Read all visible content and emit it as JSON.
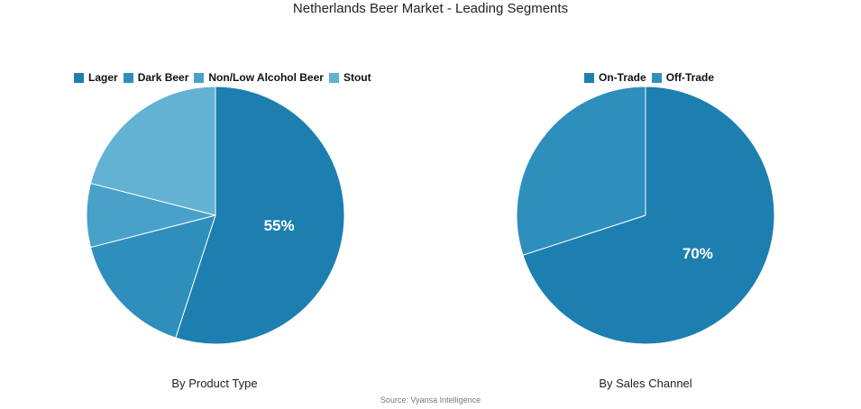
{
  "title": "Netherlands Beer Market - Leading Segments",
  "source": "Source: Vyansa Intelligence",
  "colors": {
    "lager": "#1c7fb0",
    "dark_beer": "#2e8fbd",
    "non_low_alcohol": "#48a1c8",
    "stout": "#62b2d3",
    "on_trade": "#1c7fb0",
    "off_trade": "#2e8fbd"
  },
  "chart_data": [
    {
      "type": "pie",
      "title": "By Product Type",
      "categories": [
        "Lager",
        "Dark Beer",
        "Non/Low Alcohol Beer",
        "Stout"
      ],
      "values": [
        55,
        16,
        8,
        21
      ],
      "labels": [
        "55%",
        "",
        "",
        ""
      ],
      "legend_position": "top"
    },
    {
      "type": "pie",
      "title": "By Sales Channel",
      "categories": [
        "On-Trade",
        "Off-Trade"
      ],
      "values": [
        70,
        30
      ],
      "labels": [
        "70%",
        ""
      ],
      "legend_position": "top"
    }
  ]
}
